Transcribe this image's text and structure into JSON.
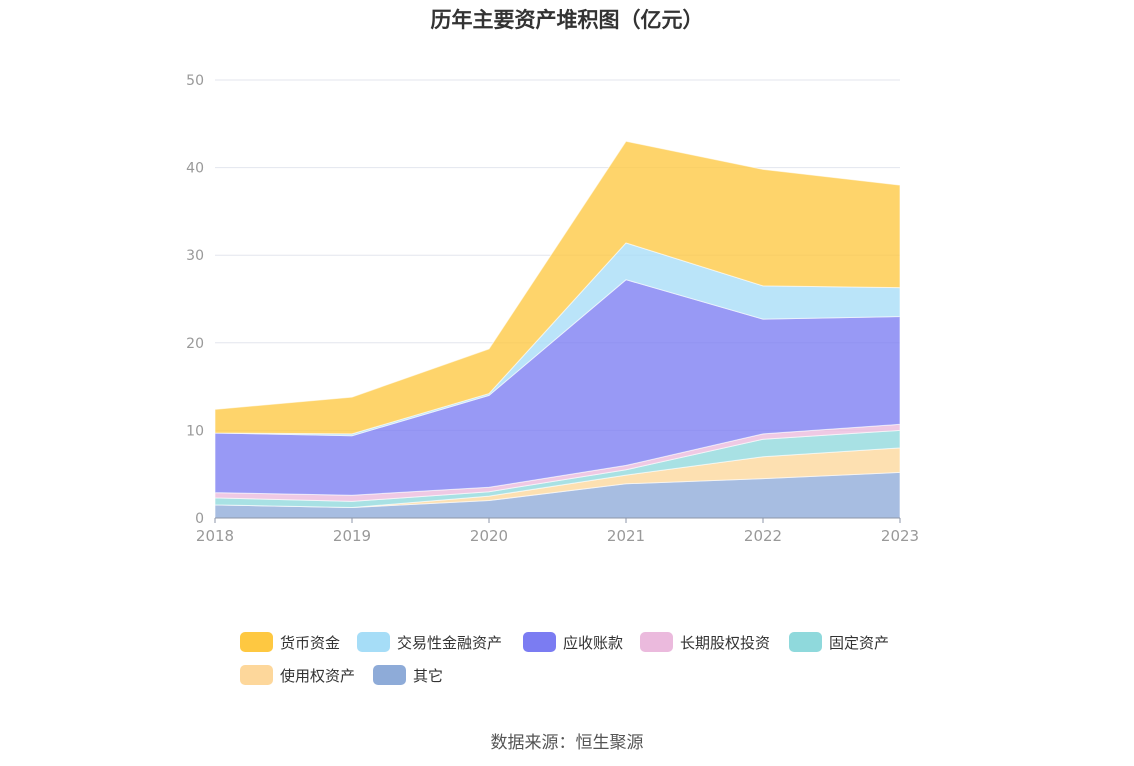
{
  "chart_data": {
    "type": "area",
    "stacked": true,
    "title": "历年主要资产堆积图（亿元）",
    "x": [
      "2018",
      "2019",
      "2020",
      "2021",
      "2022",
      "2023"
    ],
    "ylim": [
      0,
      50
    ],
    "yticks": [
      0,
      10,
      20,
      30,
      40,
      50
    ],
    "grid": true,
    "legend_position": "bottom",
    "series": [
      {
        "name": "其它",
        "color": "#8eabd8",
        "values": [
          1.5,
          1.2,
          2.0,
          3.9,
          4.5,
          5.2
        ]
      },
      {
        "name": "使用权资产",
        "color": "#fdd79b",
        "values": [
          0.0,
          0.0,
          0.5,
          1.0,
          2.5,
          2.8
        ]
      },
      {
        "name": "固定资产",
        "color": "#8fd9dc",
        "values": [
          0.8,
          0.7,
          0.5,
          0.6,
          2.0,
          2.0
        ]
      },
      {
        "name": "长期股权投资",
        "color": "#ebbadd",
        "values": [
          0.6,
          0.7,
          0.5,
          0.5,
          0.6,
          0.7
        ]
      },
      {
        "name": "应收账款",
        "color": "#7b7cf2",
        "values": [
          6.8,
          6.8,
          10.5,
          21.2,
          13.1,
          12.3
        ]
      },
      {
        "name": "交易性金融资产",
        "color": "#a6ddf7",
        "values": [
          0.0,
          0.2,
          0.2,
          4.2,
          3.8,
          3.3
        ]
      },
      {
        "name": "货币资金",
        "color": "#fec841",
        "values": [
          2.7,
          4.2,
          5.1,
          11.6,
          13.3,
          11.7
        ]
      }
    ]
  },
  "legend": [
    {
      "name": "货币资金",
      "color": "#fec841"
    },
    {
      "name": "交易性金融资产",
      "color": "#a6ddf7"
    },
    {
      "name": "应收账款",
      "color": "#7b7cf2"
    },
    {
      "name": "长期股权投资",
      "color": "#ebbadd"
    },
    {
      "name": "固定资产",
      "color": "#8fd9dc"
    },
    {
      "name": "使用权资产",
      "color": "#fdd79b"
    },
    {
      "name": "其它",
      "color": "#8eabd8"
    }
  ],
  "source": "数据来源：恒生聚源"
}
